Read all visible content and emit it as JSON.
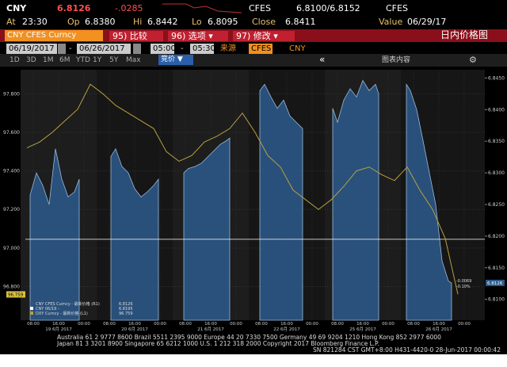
{
  "header": {
    "ticker": "CNY",
    "price": "6.8126",
    "change": "-.0285",
    "source": "CFES",
    "bid_ask": "6.8100/6.8152",
    "source2": "CFES"
  },
  "quote": [
    {
      "label": "At",
      "value": "23:30"
    },
    {
      "label": "Op",
      "value": "6.8380"
    },
    {
      "label": "Hi",
      "value": "6.8442"
    },
    {
      "label": "Lo",
      "value": "6.8095"
    },
    {
      "label": "Close",
      "value": "6.8411"
    },
    {
      "label": "Value",
      "value": "06/29/17"
    }
  ],
  "toolbar": {
    "security": "CNY CFES Curncy",
    "buttons": [
      "95) 比较",
      "96) 选项 ▾",
      "97) 修改 ▾"
    ],
    "title": "日内价格图"
  },
  "range": {
    "start_date": "06/19/2017",
    "end_date": "06/26/2017",
    "start_time": "05:00",
    "end_time": "05:30",
    "separator": "-",
    "source_label": "来源",
    "source": "CFES",
    "currency": "CNY"
  },
  "periods": [
    "1D",
    "3D",
    "1M",
    "6M",
    "YTD",
    "1Y",
    "5Y",
    "Max"
  ],
  "bid_menu": "竞价 ▼",
  "nav": "«",
  "chart_content": "图表内容",
  "chart": {
    "type": "line",
    "xlim": [
      5.5,
      150.5
    ],
    "xticks": [
      {
        "value": 8,
        "label": "08:00"
      },
      {
        "value": 16,
        "label": "16:00"
      },
      {
        "value": 24,
        "label": "00:00"
      },
      {
        "value": 32,
        "label": "08:00"
      },
      {
        "value": 40,
        "label": "16:00"
      },
      {
        "value": 48,
        "label": "00:00"
      },
      {
        "value": 56,
        "label": "08:00"
      },
      {
        "value": 64,
        "label": "16:00"
      },
      {
        "value": 72,
        "label": "00:00"
      },
      {
        "value": 80,
        "label": "08:00"
      },
      {
        "value": 88,
        "label": "16:00"
      },
      {
        "value": 96,
        "label": "00:00"
      },
      {
        "value": 104,
        "label": "08:00"
      },
      {
        "value": 112,
        "label": "16:00"
      },
      {
        "value": 120,
        "label": "00:00"
      },
      {
        "value": 128,
        "label": "08:00"
      },
      {
        "value": 136,
        "label": "16:00"
      },
      {
        "value": 144,
        "label": "00:00"
      }
    ],
    "day_labels": [
      {
        "value": 16,
        "label": "19 6月 2017"
      },
      {
        "value": 40,
        "label": "20 6月 2017"
      },
      {
        "value": 64,
        "label": "21 6月 2017"
      },
      {
        "value": 88,
        "label": "22 6月 2017"
      },
      {
        "value": 112,
        "label": "25 6月 2017"
      },
      {
        "value": 136,
        "label": "26 6月 2017"
      }
    ],
    "ylim": [
      96.625,
      97.925
    ],
    "yticks": [
      {
        "value": 96.8,
        "label": "96.800"
      },
      {
        "value": 97.0,
        "label": "97.000"
      },
      {
        "value": 97.2,
        "label": "97.200"
      },
      {
        "value": 97.4,
        "label": "97.400"
      },
      {
        "value": 97.6,
        "label": "97.600"
      },
      {
        "value": 97.8,
        "label": "97.800"
      }
    ],
    "y2lim": [
      6.8067,
      6.8463
    ],
    "y2ticks": [
      {
        "value": 6.81,
        "label": "6.8100"
      },
      {
        "value": 6.815,
        "label": "6.8150"
      },
      {
        "value": 6.82,
        "label": "6.8200"
      },
      {
        "value": 6.825,
        "label": "6.8250"
      },
      {
        "value": 6.83,
        "label": "6.8300"
      },
      {
        "value": 6.835,
        "label": "6.8350"
      },
      {
        "value": 6.84,
        "label": "6.8400"
      },
      {
        "value": 6.845,
        "label": "6.8450"
      }
    ],
    "grid": true,
    "series": [
      {
        "name": "CNY CFES Curncy - 最新价格 (R1)",
        "last": 6.8126,
        "color": "#2d5a8c",
        "axis": "y2",
        "style": "area",
        "x": [
          7,
          9,
          11,
          13,
          15,
          17,
          19,
          21,
          22.5,
          27,
          32.5,
          34,
          36,
          38,
          40,
          42,
          44,
          46,
          47.5,
          51,
          55.5,
          57,
          59,
          61,
          63,
          65,
          67,
          69,
          70,
          75,
          79.5,
          81,
          83,
          85,
          87,
          89,
          91,
          93,
          98,
          102.5,
          104,
          106,
          108,
          110,
          112,
          114,
          116,
          117,
          121,
          125.75,
          127,
          129,
          131,
          133,
          135,
          137,
          139,
          140
        ],
        "values": [
          6.8265,
          6.83,
          6.828,
          6.825,
          6.8338,
          6.829,
          6.8262,
          6.827,
          6.829,
          null,
          6.8326,
          6.8338,
          6.831,
          6.83,
          6.8275,
          6.8262,
          6.827,
          6.828,
          6.829,
          null,
          6.83,
          6.8307,
          6.831,
          6.8315,
          6.8325,
          6.8335,
          6.8345,
          6.8351,
          6.8355,
          null,
          6.843,
          6.844,
          6.842,
          6.8402,
          6.8415,
          6.839,
          6.838,
          6.837,
          null,
          6.8402,
          6.838,
          6.8415,
          6.8433,
          6.842,
          6.8446,
          6.843,
          6.844,
          6.8425,
          null,
          6.844,
          6.843,
          6.84,
          6.8351,
          6.83,
          6.825,
          6.8161,
          6.8129,
          6.8126
        ]
      },
      {
        "name": "CNY 06/19 -",
        "last": 6.8195,
        "color": "#ffffff",
        "axis": "y2",
        "style": "hline",
        "values": [
          6.8195
        ]
      },
      {
        "name": "DXY Curncy - 最新价格 (L1)",
        "last": 96.759,
        "color": "#b8a040",
        "style": "line",
        "x": [
          6,
          10,
          14,
          18,
          22,
          26,
          30,
          34,
          38,
          42,
          46,
          50,
          54,
          58,
          62,
          66,
          70,
          74,
          78,
          82,
          86,
          90,
          94,
          98,
          102,
          106,
          110,
          114,
          118,
          122,
          126,
          130,
          134,
          138,
          142
        ],
        "values": [
          97.52,
          97.55,
          97.6,
          97.66,
          97.72,
          97.85,
          97.8,
          97.74,
          97.7,
          97.66,
          97.62,
          97.5,
          97.45,
          97.48,
          97.55,
          97.58,
          97.62,
          97.7,
          97.6,
          97.48,
          97.42,
          97.3,
          97.25,
          97.2,
          97.25,
          97.32,
          97.4,
          97.42,
          97.38,
          97.35,
          97.42,
          97.3,
          97.2,
          97.05,
          96.76
        ]
      }
    ],
    "annotations": [
      "-0.0069",
      "-0.10%"
    ]
  },
  "footer": [
    "Australia 61 2 9777 8600 Brazil 5511 2395 9000 Europe 44 20 7330 7500 Germany 49 69 9204 1210 Hong Kong 852 2977 6000",
    "Japan 81 3 3201 8900 Singapore 65 6212 1000 U.S. 1 212 318 2000 Copyright 2017 Bloomberg Finance L.P.",
    "SN 821284 CST GMT+8:00 H431-4420-0 28-Jun-2017 00:00:42"
  ]
}
